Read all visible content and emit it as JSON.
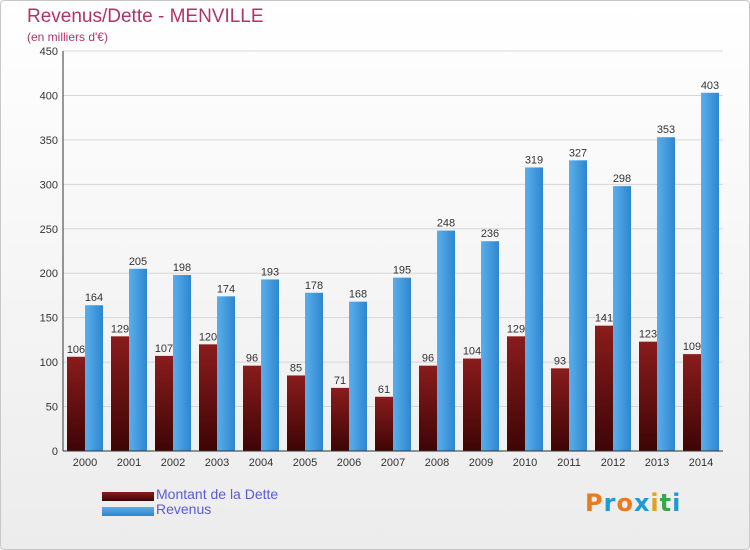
{
  "title": "Revenus/Dette - MENVILLE",
  "subtitle": "(en milliers d'€)",
  "logo_letters": [
    {
      "char": "P",
      "color": "#e97b1f"
    },
    {
      "char": "r",
      "color": "#1f9ad6"
    },
    {
      "char": "o",
      "color": "#e97b1f"
    },
    {
      "char": "x",
      "color": "#1f9ad6"
    },
    {
      "char": "i",
      "color": "#e2a21a"
    },
    {
      "char": "t",
      "color": "#3aa84a"
    },
    {
      "char": "i",
      "color": "#1f9ad6"
    }
  ],
  "colors": {
    "dette": "#6b0e0e",
    "revenus": "#3b98e0",
    "title": "#b0336a",
    "legend_text": "#5b5bd6",
    "axis": "#333333",
    "grid": "#d6d6d6"
  },
  "chart_data": {
    "type": "bar",
    "categories": [
      "2000",
      "2001",
      "2002",
      "2003",
      "2004",
      "2005",
      "2006",
      "2007",
      "2008",
      "2009",
      "2010",
      "2011",
      "2012",
      "2013",
      "2014"
    ],
    "series": [
      {
        "name": "Montant de la Dette",
        "values": [
          106,
          129,
          107,
          120,
          96,
          85,
          71,
          61,
          96,
          104,
          129,
          93,
          141,
          123,
          109
        ]
      },
      {
        "name": "Revenus",
        "values": [
          164,
          205,
          198,
          174,
          193,
          178,
          168,
          195,
          248,
          236,
          319,
          327,
          298,
          353,
          403
        ]
      }
    ],
    "ylim": [
      0,
      450
    ],
    "yticks": [
      0,
      50,
      100,
      150,
      200,
      250,
      300,
      350,
      400,
      450
    ],
    "grid": true,
    "legend_position": "bottom-left"
  }
}
